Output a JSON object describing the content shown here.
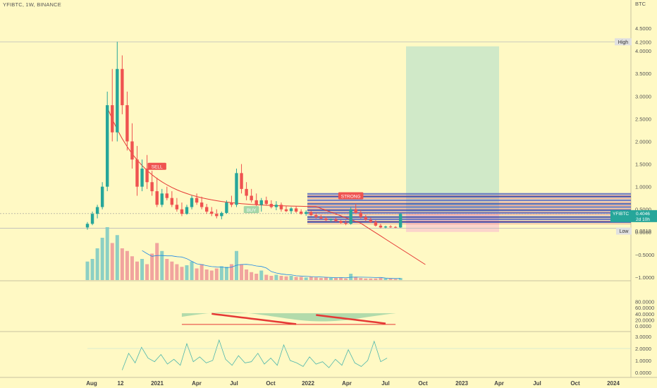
{
  "header": {
    "symbol": "YFIBTC, 1W, BINANCE"
  },
  "price_axis": {
    "currency": "BTC",
    "ticks": [
      {
        "label": "4.5000",
        "v": 4.5
      },
      {
        "label": "4.0000",
        "v": 4.0
      },
      {
        "label": "3.5000",
        "v": 3.5
      },
      {
        "label": "3.0000",
        "v": 3.0
      },
      {
        "label": "2.5000",
        "v": 2.5
      },
      {
        "label": "2.0000",
        "v": 2.0
      },
      {
        "label": "1.5000",
        "v": 1.5
      },
      {
        "label": "1.0000",
        "v": 1.0
      },
      {
        "label": "0.5000",
        "v": 0.5
      },
      {
        "label": "0.0000",
        "v": 0.0
      },
      {
        "label": "−0.5000",
        "v": -0.5
      },
      {
        "label": "−1.0000",
        "v": -1.0
      }
    ],
    "high": {
      "label": "High",
      "value": "4.2000",
      "v": 4.2
    },
    "low": {
      "label": "Low",
      "value": "0.0819",
      "v": 0.0819
    },
    "last": {
      "label": "YFIBTC",
      "value": "0.4046",
      "v": 0.4046,
      "countdown": "2d 10h"
    }
  },
  "osc_axis": {
    "ticks": [
      {
        "label": "80.0000",
        "v": 80
      },
      {
        "label": "60.0000",
        "v": 60
      },
      {
        "label": "40.0000",
        "v": 40
      },
      {
        "label": "20.0000",
        "v": 20
      },
      {
        "label": "0.0000",
        "v": 0
      }
    ]
  },
  "osc2_axis": {
    "ticks": [
      {
        "label": "3.0000",
        "v": 3
      },
      {
        "label": "2.0000",
        "v": 2
      },
      {
        "label": "1.0000",
        "v": 1
      },
      {
        "label": "0.0000",
        "v": 0
      }
    ]
  },
  "time_axis": {
    "ticks": [
      "Aug",
      "12",
      "2021",
      "Apr",
      "Jul",
      "Oct",
      "2022",
      "Apr",
      "Jul",
      "Oct",
      "2023",
      "Apr",
      "Jul",
      "Oct",
      "2024"
    ]
  },
  "signals": [
    {
      "label": "SELL",
      "week": 14,
      "color": "#ef5350"
    },
    {
      "label": "STRONG",
      "week": 53,
      "color": "#ef5350"
    },
    {
      "label": "BUY",
      "week": 33,
      "color": "#a5d6a7"
    }
  ],
  "colors": {
    "up": "#26a69a",
    "down": "#ef5350",
    "background": "#fff9c4",
    "target": "#c8e6c9",
    "stop": "#f8bbd0"
  },
  "chart_data": {
    "type": "candlestick",
    "title": "YFIBTC, 1W, BINANCE",
    "x_unit": "weeks since first bar (Jul 2020)",
    "ylim": [
      -1.0,
      4.5
    ],
    "candles": [
      [
        0.1,
        0.22,
        0.05,
        0.18
      ],
      [
        0.18,
        0.45,
        0.15,
        0.4
      ],
      [
        0.4,
        0.6,
        0.3,
        0.55
      ],
      [
        0.55,
        1.1,
        0.5,
        1.0
      ],
      [
        1.0,
        3.1,
        0.9,
        2.8
      ],
      [
        2.8,
        3.6,
        2.0,
        2.2
      ],
      [
        2.2,
        4.2,
        2.0,
        3.6
      ],
      [
        3.6,
        3.9,
        2.6,
        2.8
      ],
      [
        2.8,
        3.1,
        1.8,
        2.0
      ],
      [
        2.0,
        2.4,
        1.4,
        1.6
      ],
      [
        1.6,
        1.9,
        0.8,
        1.0
      ],
      [
        1.0,
        1.6,
        0.9,
        1.4
      ],
      [
        1.4,
        1.7,
        0.95,
        1.1
      ],
      [
        1.1,
        1.35,
        0.8,
        0.9
      ],
      [
        0.9,
        1.2,
        0.55,
        0.6
      ],
      [
        0.6,
        0.95,
        0.55,
        0.85
      ],
      [
        0.85,
        1.0,
        0.7,
        0.75
      ],
      [
        0.75,
        0.9,
        0.55,
        0.6
      ],
      [
        0.6,
        0.75,
        0.45,
        0.5
      ],
      [
        0.5,
        0.65,
        0.35,
        0.4
      ],
      [
        0.4,
        0.6,
        0.38,
        0.55
      ],
      [
        0.55,
        0.8,
        0.5,
        0.75
      ],
      [
        0.75,
        0.85,
        0.6,
        0.65
      ],
      [
        0.65,
        0.78,
        0.5,
        0.55
      ],
      [
        0.55,
        0.62,
        0.4,
        0.45
      ],
      [
        0.45,
        0.55,
        0.35,
        0.4
      ],
      [
        0.4,
        0.5,
        0.3,
        0.35
      ],
      [
        0.35,
        0.45,
        0.28,
        0.42
      ],
      [
        0.42,
        0.7,
        0.4,
        0.65
      ],
      [
        0.65,
        0.8,
        0.55,
        0.6
      ],
      [
        0.6,
        1.4,
        0.55,
        1.3
      ],
      [
        1.3,
        1.5,
        0.85,
        0.95
      ],
      [
        0.95,
        1.1,
        0.7,
        0.8
      ],
      [
        0.8,
        0.95,
        0.65,
        0.7
      ],
      [
        0.7,
        0.85,
        0.55,
        0.6
      ],
      [
        0.6,
        0.75,
        0.45,
        0.7
      ],
      [
        0.7,
        0.78,
        0.58,
        0.62
      ],
      [
        0.62,
        0.7,
        0.52,
        0.55
      ],
      [
        0.55,
        0.68,
        0.48,
        0.6
      ],
      [
        0.6,
        0.65,
        0.45,
        0.5
      ],
      [
        0.5,
        0.58,
        0.44,
        0.46
      ],
      [
        0.46,
        0.55,
        0.4,
        0.52
      ],
      [
        0.52,
        0.56,
        0.42,
        0.45
      ],
      [
        0.45,
        0.5,
        0.38,
        0.4
      ],
      [
        0.4,
        0.48,
        0.36,
        0.44
      ],
      [
        0.44,
        0.47,
        0.35,
        0.37
      ],
      [
        0.37,
        0.42,
        0.3,
        0.33
      ],
      [
        0.33,
        0.38,
        0.28,
        0.3
      ],
      [
        0.3,
        0.34,
        0.24,
        0.26
      ],
      [
        0.26,
        0.3,
        0.22,
        0.28
      ],
      [
        0.28,
        0.32,
        0.22,
        0.24
      ],
      [
        0.24,
        0.27,
        0.18,
        0.2
      ],
      [
        0.2,
        0.26,
        0.15,
        0.18
      ],
      [
        0.18,
        0.55,
        0.16,
        0.5
      ],
      [
        0.5,
        0.62,
        0.4,
        0.42
      ],
      [
        0.42,
        0.48,
        0.3,
        0.33
      ],
      [
        0.33,
        0.38,
        0.24,
        0.27
      ],
      [
        0.27,
        0.32,
        0.2,
        0.22
      ],
      [
        0.22,
        0.26,
        0.12,
        0.14
      ],
      [
        0.14,
        0.18,
        0.08,
        0.1
      ],
      [
        0.1,
        0.14,
        0.08,
        0.12
      ],
      [
        0.12,
        0.15,
        0.09,
        0.11
      ],
      [
        0.11,
        0.13,
        0.085,
        0.1
      ],
      [
        0.1,
        0.42,
        0.09,
        0.4
      ]
    ],
    "volume": [
      0.35,
      0.4,
      0.6,
      0.8,
      1.0,
      0.7,
      0.85,
      0.6,
      0.55,
      0.45,
      0.35,
      0.4,
      0.3,
      0.5,
      0.7,
      0.55,
      0.4,
      0.35,
      0.3,
      0.25,
      0.28,
      0.35,
      0.22,
      0.3,
      0.2,
      0.18,
      0.22,
      0.26,
      0.25,
      0.3,
      0.55,
      0.3,
      0.2,
      0.15,
      0.12,
      0.18,
      0.1,
      0.08,
      0.1,
      0.08,
      0.07,
      0.08,
      0.06,
      0.06,
      0.05,
      0.06,
      0.05,
      0.04,
      0.05,
      0.04,
      0.04,
      0.05,
      0.03,
      0.12,
      0.06,
      0.04,
      0.03,
      0.03,
      0.03,
      0.04,
      0.03,
      0.03,
      0.02,
      0.04
    ]
  }
}
